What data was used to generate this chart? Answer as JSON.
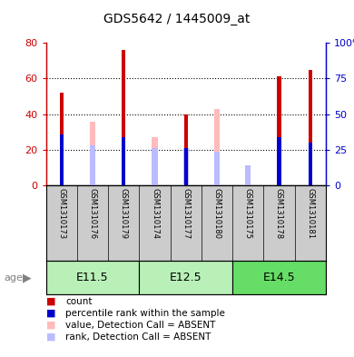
{
  "title": "GDS5642 / 1445009_at",
  "samples": [
    "GSM1310173",
    "GSM1310176",
    "GSM1310179",
    "GSM1310174",
    "GSM1310177",
    "GSM1310180",
    "GSM1310175",
    "GSM1310178",
    "GSM1310181"
  ],
  "count_values": [
    52,
    0,
    76,
    0,
    40,
    0,
    0,
    61,
    65
  ],
  "percentile_rank": [
    36,
    0,
    34,
    0,
    26,
    0,
    0,
    34,
    30
  ],
  "absent_value": [
    0,
    36,
    0,
    27,
    0,
    43,
    10,
    0,
    0
  ],
  "absent_rank": [
    0,
    28,
    0,
    26,
    26,
    24,
    14,
    0,
    0
  ],
  "age_groups": [
    {
      "label": "E11.5",
      "start": 0,
      "end": 3,
      "color": "#b8f0b8"
    },
    {
      "label": "E12.5",
      "start": 3,
      "end": 6,
      "color": "#b8f0b8"
    },
    {
      "label": "E14.5",
      "start": 6,
      "end": 9,
      "color": "#66dd66"
    }
  ],
  "ylim_left": [
    0,
    80
  ],
  "ylim_right": [
    0,
    100
  ],
  "yticks_left": [
    0,
    20,
    40,
    60,
    80
  ],
  "yticks_right": [
    0,
    25,
    50,
    75,
    100
  ],
  "yticklabels_right": [
    "0",
    "25",
    "50",
    "75",
    "100%"
  ],
  "count_color": "#cc0000",
  "rank_color": "#0000cc",
  "absent_value_color": "#ffbbbb",
  "absent_rank_color": "#bbbbff",
  "tick_area_bg": "#cccccc",
  "title_color": "#000000",
  "left_axis_color": "#cc0000",
  "right_axis_color": "#0000cc"
}
